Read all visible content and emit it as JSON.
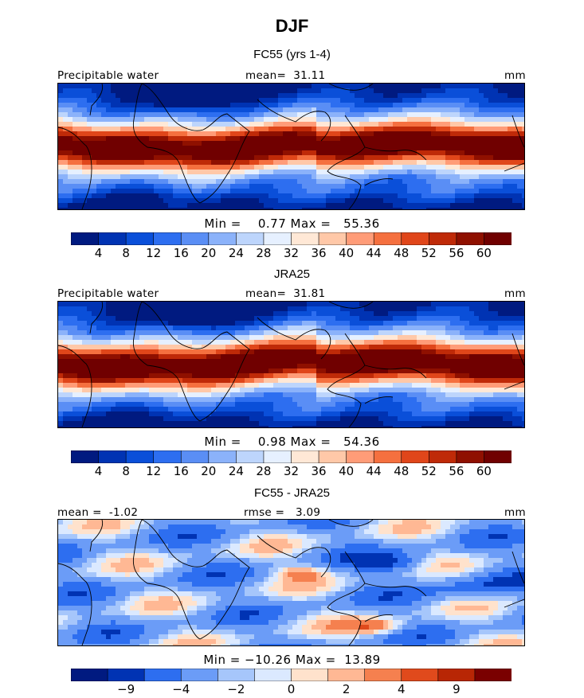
{
  "figure": {
    "title": "DJF"
  },
  "panels": [
    {
      "title": "FC55 (yrs 1-4)",
      "left_label": "Precipitable water",
      "center_label": "mean=  31.11",
      "right_label": "mm",
      "minmax": "Min =    0.77 Max =   55.36",
      "colorbar": {
        "ticks": [
          "4",
          "8",
          "12",
          "16",
          "20",
          "24",
          "28",
          "32",
          "36",
          "40",
          "44",
          "48",
          "52",
          "56",
          "60"
        ]
      }
    },
    {
      "title": "JRA25",
      "left_label": "Precipitable water",
      "center_label": "mean=  31.81",
      "right_label": "mm",
      "minmax": "Min =    0.98 Max =   54.36",
      "colorbar": {
        "ticks": [
          "4",
          "8",
          "12",
          "16",
          "20",
          "24",
          "28",
          "32",
          "36",
          "40",
          "44",
          "48",
          "52",
          "56",
          "60"
        ]
      }
    },
    {
      "title": "FC55 - JRA25",
      "left_label": "mean =  -1.02",
      "center_label": "rmse =   3.09",
      "right_label": "mm",
      "minmax": "Min = −10.26 Max =  13.89",
      "colorbar": {
        "ticks": [
          "−9",
          "−4",
          "−2",
          "0",
          "2",
          "4",
          "9"
        ]
      }
    }
  ],
  "chart_data": [
    {
      "type": "heatmap",
      "title": "FC55 (yrs 1-4)",
      "variable": "Precipitable water",
      "units": "mm",
      "mean": 31.11,
      "min": 0.77,
      "max": 55.36,
      "levels": [
        4,
        8,
        12,
        16,
        20,
        24,
        28,
        32,
        36,
        40,
        44,
        48,
        52,
        56,
        60
      ]
    },
    {
      "type": "heatmap",
      "title": "JRA25",
      "variable": "Precipitable water",
      "units": "mm",
      "mean": 31.81,
      "min": 0.98,
      "max": 54.36,
      "levels": [
        4,
        8,
        12,
        16,
        20,
        24,
        28,
        32,
        36,
        40,
        44,
        48,
        52,
        56,
        60
      ]
    },
    {
      "type": "heatmap",
      "title": "FC55 - JRA25",
      "units": "mm",
      "mean": -1.02,
      "rmse": 3.09,
      "min": -10.26,
      "max": 13.89,
      "levels": [
        -9,
        -4,
        -2,
        0,
        2,
        4,
        9
      ]
    }
  ],
  "colors": {
    "colorbar": [
      "#001a80",
      "#0033b3",
      "#0a4fd9",
      "#2d6ef0",
      "#5a8ef5",
      "#8bb2fa",
      "#bdd5fc",
      "#e6f0ff",
      "#ffe8d6",
      "#ffc8a8",
      "#ff9c78",
      "#f5703f",
      "#e0461a",
      "#bf2a08",
      "#8f1000",
      "#700000"
    ],
    "diff_colorbar": [
      "#001a80",
      "#0033b3",
      "#2d6ef0",
      "#6b9cf7",
      "#a6c6fb",
      "#dbe9ff",
      "#ffe2cc",
      "#ffb894",
      "#f5804f",
      "#e04a1c",
      "#b82605",
      "#7a0000"
    ]
  }
}
